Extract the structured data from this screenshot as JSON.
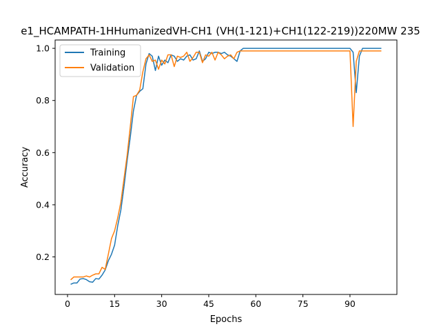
{
  "chart_data": {
    "type": "line",
    "title": "e1_HCAMPATH-1HHumanizedVH-CH1 (VH(1-121)+CH1(122-219))220MW 235",
    "xlabel": "Epochs",
    "ylabel": "Accuracy",
    "xlim": [
      -3.95,
      104.95
    ],
    "ylim": [
      0.056,
      1.032
    ],
    "xticks": [
      0,
      15,
      30,
      45,
      60,
      75,
      90
    ],
    "yticks": [
      0.2,
      0.4,
      0.6,
      0.8,
      1.0
    ],
    "xtick_labels": [
      "0",
      "15",
      "30",
      "45",
      "60",
      "75",
      "90"
    ],
    "ytick_labels": [
      "0.2",
      "0.4",
      "0.6",
      "0.8",
      "1.0"
    ],
    "grid": false,
    "legend_position": "top-left",
    "series": [
      {
        "name": "Training",
        "color": "#1f77b4",
        "x": [
          1,
          2,
          3,
          4,
          5,
          6,
          7,
          8,
          9,
          10,
          11,
          12,
          13,
          14,
          15,
          16,
          17,
          18,
          19,
          20,
          21,
          22,
          23,
          24,
          25,
          26,
          27,
          28,
          29,
          30,
          31,
          32,
          33,
          34,
          35,
          36,
          37,
          38,
          39,
          40,
          41,
          42,
          43,
          44,
          45,
          46,
          47,
          48,
          49,
          50,
          51,
          52,
          53,
          54,
          55,
          56,
          57,
          58,
          59,
          60,
          61,
          62,
          63,
          64,
          65,
          66,
          67,
          68,
          69,
          70,
          71,
          72,
          73,
          74,
          75,
          76,
          77,
          78,
          79,
          80,
          81,
          82,
          83,
          84,
          85,
          86,
          87,
          88,
          89,
          90,
          91,
          92,
          93,
          94,
          95,
          96,
          97,
          98,
          99,
          100
        ],
        "y": [
          0.095,
          0.1,
          0.1,
          0.115,
          0.117,
          0.113,
          0.105,
          0.103,
          0.117,
          0.115,
          0.13,
          0.15,
          0.185,
          0.21,
          0.245,
          0.32,
          0.38,
          0.47,
          0.57,
          0.66,
          0.76,
          0.82,
          0.835,
          0.845,
          0.94,
          0.98,
          0.97,
          0.915,
          0.97,
          0.935,
          0.955,
          0.945,
          0.975,
          0.97,
          0.95,
          0.96,
          0.955,
          0.97,
          0.975,
          0.955,
          0.96,
          0.99,
          0.95,
          0.96,
          0.985,
          0.98,
          0.985,
          0.985,
          0.98,
          0.985,
          0.975,
          0.97,
          0.96,
          0.95,
          0.99,
          1.0,
          1.0,
          1.0,
          1.0,
          1.0,
          1.0,
          1.0,
          1.0,
          1.0,
          1.0,
          1.0,
          1.0,
          1.0,
          1.0,
          1.0,
          1.0,
          1.0,
          1.0,
          1.0,
          1.0,
          1.0,
          1.0,
          1.0,
          1.0,
          1.0,
          1.0,
          1.0,
          1.0,
          1.0,
          1.0,
          1.0,
          1.0,
          1.0,
          1.0,
          1.0,
          0.985,
          0.83,
          0.97,
          1.0,
          1.0,
          1.0,
          1.0,
          1.0,
          1.0,
          1.0
        ]
      },
      {
        "name": "Validation",
        "color": "#ff7f0e",
        "x": [
          1,
          2,
          3,
          4,
          5,
          6,
          7,
          8,
          9,
          10,
          11,
          12,
          13,
          14,
          15,
          16,
          17,
          18,
          19,
          20,
          21,
          22,
          23,
          24,
          25,
          26,
          27,
          28,
          29,
          30,
          31,
          32,
          33,
          34,
          35,
          36,
          37,
          38,
          39,
          40,
          41,
          42,
          43,
          44,
          45,
          46,
          47,
          48,
          49,
          50,
          51,
          52,
          53,
          54,
          55,
          56,
          57,
          58,
          59,
          60,
          61,
          62,
          63,
          64,
          65,
          66,
          67,
          68,
          69,
          70,
          71,
          72,
          73,
          74,
          75,
          76,
          77,
          78,
          79,
          80,
          81,
          82,
          83,
          84,
          85,
          86,
          87,
          88,
          89,
          90,
          91,
          92,
          93,
          94,
          95,
          96,
          97,
          98,
          99,
          100
        ],
        "y": [
          0.112,
          0.123,
          0.123,
          0.123,
          0.123,
          0.127,
          0.123,
          0.13,
          0.135,
          0.135,
          0.16,
          0.152,
          0.21,
          0.27,
          0.3,
          0.35,
          0.41,
          0.5,
          0.59,
          0.7,
          0.815,
          0.82,
          0.84,
          0.91,
          0.96,
          0.975,
          0.95,
          0.955,
          0.92,
          0.955,
          0.94,
          0.975,
          0.975,
          0.93,
          0.97,
          0.965,
          0.97,
          0.985,
          0.95,
          0.965,
          0.985,
          0.985,
          0.945,
          0.975,
          0.97,
          0.985,
          0.955,
          0.985,
          0.975,
          0.96,
          0.97,
          0.975,
          0.96,
          0.985,
          0.99,
          0.99,
          0.99,
          0.99,
          0.99,
          0.99,
          0.99,
          0.99,
          0.99,
          0.99,
          0.99,
          0.99,
          0.99,
          0.99,
          0.99,
          0.99,
          0.99,
          0.99,
          0.99,
          0.99,
          0.99,
          0.99,
          0.99,
          0.99,
          0.99,
          0.99,
          0.99,
          0.99,
          0.99,
          0.99,
          0.99,
          0.99,
          0.99,
          0.99,
          0.99,
          0.99,
          0.7,
          0.95,
          0.99,
          0.99,
          0.99,
          0.99,
          0.99,
          0.99,
          0.99,
          0.99
        ]
      }
    ]
  }
}
